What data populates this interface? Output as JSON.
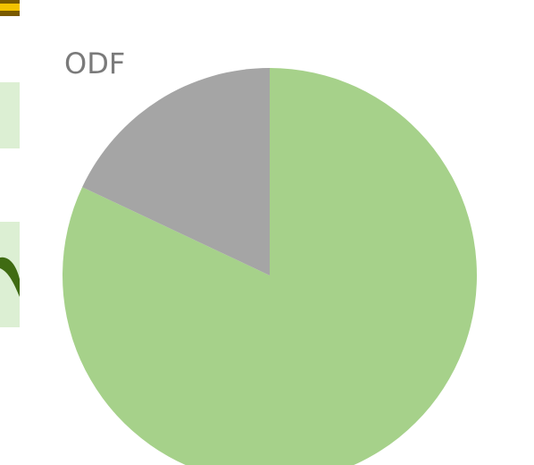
{
  "chart_data": {
    "type": "pie",
    "title": "ODF",
    "values": [
      82,
      18
    ],
    "colors": [
      "#a6d18a",
      "#a5a5a5"
    ]
  }
}
